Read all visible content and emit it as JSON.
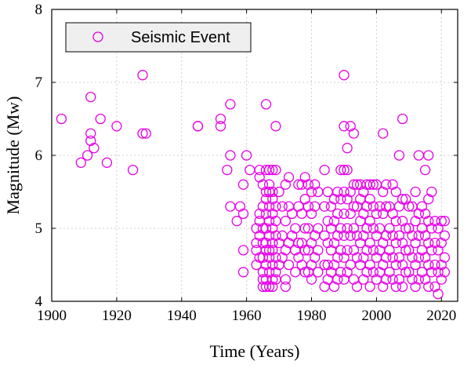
{
  "chart_data": {
    "type": "scatter",
    "title": "",
    "xlabel": "Time (Years)",
    "ylabel": "Magnitude (Mw)",
    "xlim": [
      1900,
      2025
    ],
    "ylim": [
      4,
      8
    ],
    "xticks": [
      "1900",
      "1920",
      "1940",
      "1960",
      "1980",
      "2000",
      "2020"
    ],
    "yticks": [
      "4",
      "5",
      "6",
      "7",
      "8"
    ],
    "grid": true,
    "legend_position": "top-left",
    "series": [
      {
        "name": "Seismic Event",
        "color": "#e600e6",
        "marker": "open-circle",
        "points": [
          [
            1903,
            6.5
          ],
          [
            1909,
            5.9
          ],
          [
            1911,
            6.0
          ],
          [
            1912,
            6.8
          ],
          [
            1912,
            6.3
          ],
          [
            1912,
            6.2
          ],
          [
            1913,
            6.1
          ],
          [
            1915,
            6.5
          ],
          [
            1917,
            5.9
          ],
          [
            1920,
            6.4
          ],
          [
            1925,
            5.8
          ],
          [
            1928,
            7.1
          ],
          [
            1928,
            6.3
          ],
          [
            1929,
            6.3
          ],
          [
            1945,
            6.4
          ],
          [
            1945,
            6.4
          ],
          [
            1952,
            6.5
          ],
          [
            1952,
            6.4
          ],
          [
            1954,
            5.8
          ],
          [
            1955,
            6.7
          ],
          [
            1955,
            6.0
          ],
          [
            1955,
            5.3
          ],
          [
            1957,
            5.1
          ],
          [
            1958,
            5.3
          ],
          [
            1959,
            5.6
          ],
          [
            1959,
            5.2
          ],
          [
            1959,
            4.7
          ],
          [
            1959,
            4.4
          ],
          [
            1960,
            6.0
          ],
          [
            1961,
            5.8
          ],
          [
            1963,
            5.0
          ],
          [
            1963,
            4.8
          ],
          [
            1963,
            4.7
          ],
          [
            1963,
            4.5
          ],
          [
            1964,
            5.8
          ],
          [
            1964,
            5.7
          ],
          [
            1964,
            5.2
          ],
          [
            1964,
            5.1
          ],
          [
            1964,
            4.9
          ],
          [
            1964,
            4.6
          ],
          [
            1965,
            5.6
          ],
          [
            1965,
            5.3
          ],
          [
            1965,
            5.0
          ],
          [
            1965,
            4.8
          ],
          [
            1965,
            4.6
          ],
          [
            1965,
            4.4
          ],
          [
            1965,
            4.3
          ],
          [
            1965,
            4.2
          ],
          [
            1966,
            6.7
          ],
          [
            1966,
            5.8
          ],
          [
            1966,
            5.5
          ],
          [
            1966,
            5.4
          ],
          [
            1966,
            5.2
          ],
          [
            1966,
            5.0
          ],
          [
            1966,
            4.8
          ],
          [
            1966,
            4.7
          ],
          [
            1966,
            4.5
          ],
          [
            1966,
            4.3
          ],
          [
            1966,
            4.2
          ],
          [
            1967,
            5.8
          ],
          [
            1967,
            5.6
          ],
          [
            1967,
            5.5
          ],
          [
            1967,
            5.3
          ],
          [
            1967,
            5.1
          ],
          [
            1967,
            4.9
          ],
          [
            1967,
            4.7
          ],
          [
            1967,
            4.6
          ],
          [
            1967,
            4.4
          ],
          [
            1967,
            4.2
          ],
          [
            1968,
            5.8
          ],
          [
            1968,
            5.5
          ],
          [
            1968,
            5.4
          ],
          [
            1968,
            5.2
          ],
          [
            1968,
            5.0
          ],
          [
            1968,
            4.8
          ],
          [
            1968,
            4.7
          ],
          [
            1968,
            4.5
          ],
          [
            1968,
            4.3
          ],
          [
            1968,
            4.2
          ],
          [
            1969,
            6.4
          ],
          [
            1969,
            5.8
          ],
          [
            1969,
            5.3
          ],
          [
            1969,
            5.1
          ],
          [
            1969,
            4.9
          ],
          [
            1969,
            4.6
          ],
          [
            1969,
            4.4
          ],
          [
            1969,
            4.3
          ],
          [
            1970,
            5.5
          ],
          [
            1970,
            4.8
          ],
          [
            1970,
            4.5
          ],
          [
            1971,
            5.3
          ],
          [
            1971,
            4.9
          ],
          [
            1971,
            4.6
          ],
          [
            1972,
            5.6
          ],
          [
            1972,
            5.1
          ],
          [
            1972,
            4.7
          ],
          [
            1972,
            4.3
          ],
          [
            1972,
            4.2
          ],
          [
            1973,
            5.7
          ],
          [
            1973,
            5.3
          ],
          [
            1973,
            4.8
          ],
          [
            1973,
            4.5
          ],
          [
            1974,
            5.2
          ],
          [
            1974,
            4.9
          ],
          [
            1975,
            5.0
          ],
          [
            1975,
            4.7
          ],
          [
            1975,
            4.4
          ],
          [
            1976,
            5.6
          ],
          [
            1976,
            5.3
          ],
          [
            1976,
            4.8
          ],
          [
            1976,
            4.6
          ],
          [
            1977,
            5.6
          ],
          [
            1977,
            5.2
          ],
          [
            1977,
            4.8
          ],
          [
            1977,
            4.5
          ],
          [
            1978,
            5.7
          ],
          [
            1978,
            5.4
          ],
          [
            1978,
            5.0
          ],
          [
            1978,
            4.7
          ],
          [
            1978,
            4.4
          ],
          [
            1979,
            5.6
          ],
          [
            1979,
            5.3
          ],
          [
            1979,
            5.0
          ],
          [
            1979,
            4.7
          ],
          [
            1979,
            4.4
          ],
          [
            1980,
            5.5
          ],
          [
            1980,
            5.2
          ],
          [
            1980,
            4.8
          ],
          [
            1980,
            4.5
          ],
          [
            1980,
            4.3
          ],
          [
            1981,
            5.6
          ],
          [
            1981,
            5.3
          ],
          [
            1981,
            4.9
          ],
          [
            1981,
            4.6
          ],
          [
            1982,
            5.5
          ],
          [
            1982,
            5.0
          ],
          [
            1982,
            4.7
          ],
          [
            1982,
            4.4
          ],
          [
            1984,
            5.8
          ],
          [
            1984,
            5.3
          ],
          [
            1984,
            4.9
          ],
          [
            1984,
            4.5
          ],
          [
            1984,
            4.2
          ],
          [
            1985,
            5.5
          ],
          [
            1985,
            5.1
          ],
          [
            1985,
            4.8
          ],
          [
            1985,
            4.5
          ],
          [
            1985,
            4.3
          ],
          [
            1986,
            5.3
          ],
          [
            1986,
            5.0
          ],
          [
            1986,
            4.7
          ],
          [
            1986,
            4.4
          ],
          [
            1987,
            5.4
          ],
          [
            1987,
            5.1
          ],
          [
            1987,
            4.8
          ],
          [
            1987,
            4.5
          ],
          [
            1987,
            4.2
          ],
          [
            1988,
            5.5
          ],
          [
            1988,
            5.2
          ],
          [
            1988,
            4.9
          ],
          [
            1988,
            4.6
          ],
          [
            1988,
            4.3
          ],
          [
            1989,
            5.8
          ],
          [
            1989,
            5.4
          ],
          [
            1989,
            5.0
          ],
          [
            1989,
            4.7
          ],
          [
            1989,
            4.4
          ],
          [
            1990,
            7.1
          ],
          [
            1990,
            6.4
          ],
          [
            1990,
            5.8
          ],
          [
            1990,
            5.5
          ],
          [
            1990,
            5.2
          ],
          [
            1990,
            4.9
          ],
          [
            1990,
            4.6
          ],
          [
            1990,
            4.3
          ],
          [
            1991,
            6.1
          ],
          [
            1991,
            5.8
          ],
          [
            1991,
            5.4
          ],
          [
            1991,
            5.0
          ],
          [
            1991,
            4.7
          ],
          [
            1991,
            4.4
          ],
          [
            1992,
            6.4
          ],
          [
            1992,
            5.5
          ],
          [
            1992,
            5.2
          ],
          [
            1992,
            4.9
          ],
          [
            1992,
            4.5
          ],
          [
            1993,
            6.3
          ],
          [
            1993,
            5.6
          ],
          [
            1993,
            5.3
          ],
          [
            1993,
            5.0
          ],
          [
            1993,
            4.7
          ],
          [
            1993,
            4.3
          ],
          [
            1994,
            5.6
          ],
          [
            1994,
            5.3
          ],
          [
            1994,
            4.9
          ],
          [
            1994,
            4.6
          ],
          [
            1994,
            4.2
          ],
          [
            1995,
            5.6
          ],
          [
            1995,
            5.4
          ],
          [
            1995,
            5.1
          ],
          [
            1995,
            4.8
          ],
          [
            1995,
            4.5
          ],
          [
            1996,
            5.5
          ],
          [
            1996,
            5.2
          ],
          [
            1996,
            4.9
          ],
          [
            1996,
            4.6
          ],
          [
            1996,
            4.3
          ],
          [
            1997,
            5.6
          ],
          [
            1997,
            5.3
          ],
          [
            1997,
            5.0
          ],
          [
            1997,
            4.7
          ],
          [
            1997,
            4.4
          ],
          [
            1998,
            5.6
          ],
          [
            1998,
            5.4
          ],
          [
            1998,
            5.1
          ],
          [
            1998,
            4.8
          ],
          [
            1998,
            4.5
          ],
          [
            1998,
            4.2
          ],
          [
            1999,
            5.6
          ],
          [
            1999,
            5.3
          ],
          [
            1999,
            5.0
          ],
          [
            1999,
            4.7
          ],
          [
            1999,
            4.4
          ],
          [
            2000,
            5.6
          ],
          [
            2000,
            5.2
          ],
          [
            2000,
            4.9
          ],
          [
            2000,
            4.6
          ],
          [
            2000,
            4.3
          ],
          [
            2001,
            5.3
          ],
          [
            2001,
            5.0
          ],
          [
            2001,
            4.7
          ],
          [
            2001,
            4.4
          ],
          [
            2002,
            6.3
          ],
          [
            2002,
            5.5
          ],
          [
            2002,
            5.2
          ],
          [
            2002,
            4.8
          ],
          [
            2002,
            4.5
          ],
          [
            2002,
            4.2
          ],
          [
            2003,
            5.6
          ],
          [
            2003,
            5.3
          ],
          [
            2003,
            4.9
          ],
          [
            2003,
            4.6
          ],
          [
            2003,
            4.3
          ],
          [
            2004,
            5.3
          ],
          [
            2004,
            5.0
          ],
          [
            2004,
            4.7
          ],
          [
            2004,
            4.4
          ],
          [
            2005,
            5.6
          ],
          [
            2005,
            5.2
          ],
          [
            2005,
            4.9
          ],
          [
            2005,
            4.6
          ],
          [
            2005,
            4.3
          ],
          [
            2006,
            5.5
          ],
          [
            2006,
            5.1
          ],
          [
            2006,
            4.8
          ],
          [
            2006,
            4.5
          ],
          [
            2006,
            4.2
          ],
          [
            2007,
            6.0
          ],
          [
            2007,
            5.3
          ],
          [
            2007,
            4.9
          ],
          [
            2007,
            4.6
          ],
          [
            2007,
            4.3
          ],
          [
            2008,
            6.5
          ],
          [
            2008,
            5.4
          ],
          [
            2008,
            5.1
          ],
          [
            2008,
            4.8
          ],
          [
            2008,
            4.5
          ],
          [
            2008,
            4.2
          ],
          [
            2009,
            5.4
          ],
          [
            2009,
            5.0
          ],
          [
            2009,
            4.7
          ],
          [
            2009,
            4.4
          ],
          [
            2010,
            5.3
          ],
          [
            2010,
            5.0
          ],
          [
            2010,
            4.7
          ],
          [
            2010,
            4.4
          ],
          [
            2011,
            5.3
          ],
          [
            2011,
            4.9
          ],
          [
            2011,
            4.6
          ],
          [
            2011,
            4.3
          ],
          [
            2012,
            5.5
          ],
          [
            2012,
            5.1
          ],
          [
            2012,
            4.8
          ],
          [
            2012,
            4.5
          ],
          [
            2012,
            4.2
          ],
          [
            2013,
            6.0
          ],
          [
            2013,
            5.2
          ],
          [
            2013,
            4.9
          ],
          [
            2013,
            4.6
          ],
          [
            2013,
            4.3
          ],
          [
            2014,
            5.3
          ],
          [
            2014,
            5.0
          ],
          [
            2014,
            4.7
          ],
          [
            2014,
            4.4
          ],
          [
            2015,
            5.8
          ],
          [
            2015,
            5.2
          ],
          [
            2015,
            4.9
          ],
          [
            2015,
            4.6
          ],
          [
            2015,
            4.3
          ],
          [
            2016,
            6.0
          ],
          [
            2016,
            5.4
          ],
          [
            2016,
            5.1
          ],
          [
            2016,
            4.8
          ],
          [
            2016,
            4.5
          ],
          [
            2016,
            4.2
          ],
          [
            2017,
            5.5
          ],
          [
            2017,
            5.0
          ],
          [
            2017,
            4.7
          ],
          [
            2017,
            4.4
          ],
          [
            2018,
            5.1
          ],
          [
            2018,
            4.8
          ],
          [
            2018,
            4.5
          ],
          [
            2018,
            4.2
          ],
          [
            2019,
            5.0
          ],
          [
            2019,
            4.7
          ],
          [
            2019,
            4.4
          ],
          [
            2019,
            4.1
          ],
          [
            2020,
            5.1
          ],
          [
            2020,
            4.8
          ],
          [
            2020,
            4.5
          ],
          [
            2020,
            4.3
          ],
          [
            2021,
            5.1
          ],
          [
            2021,
            4.9
          ],
          [
            2021,
            4.6
          ],
          [
            2021,
            4.4
          ]
        ]
      }
    ]
  }
}
